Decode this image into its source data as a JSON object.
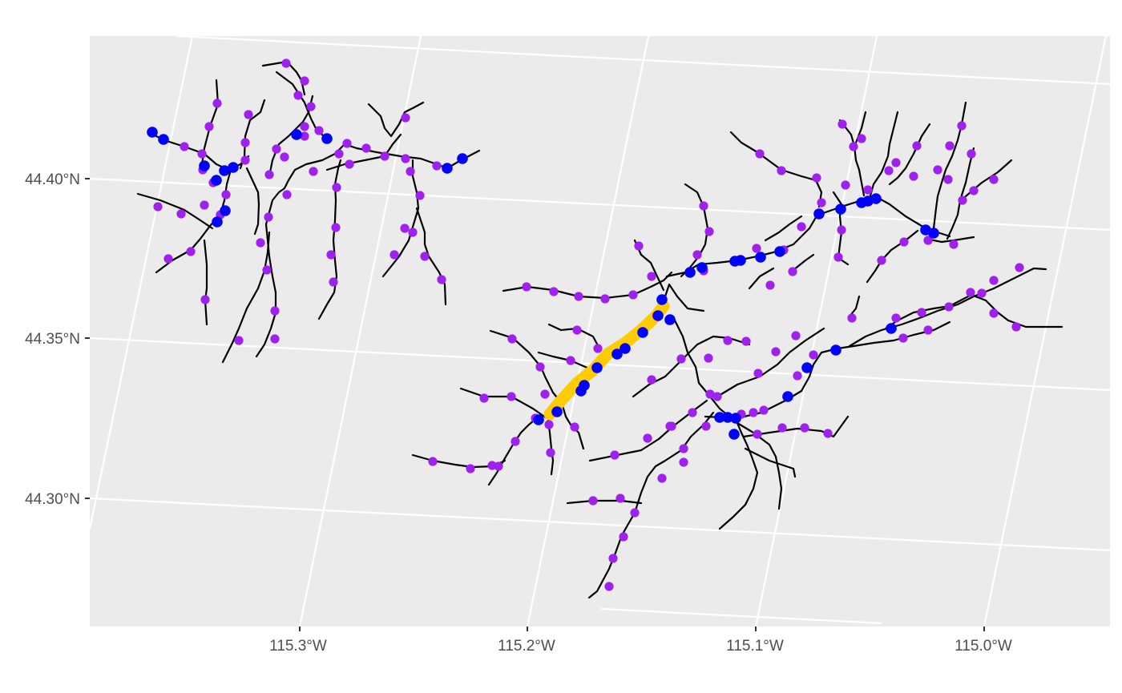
{
  "chart_data": {
    "type": "map",
    "x_ticks": [
      "115.3°W",
      "115.2°W",
      "115.1°W",
      "115.0°W"
    ],
    "y_ticks": [
      "44.40°N",
      "44.35°N",
      "44.30°N"
    ],
    "background": "#EBEBEB",
    "grid": true,
    "colors": {
      "stream_line": "#000000",
      "highlight_path": "#FFCC00",
      "point_purple": "#A020F0",
      "point_blue": "#0000FF"
    }
  }
}
